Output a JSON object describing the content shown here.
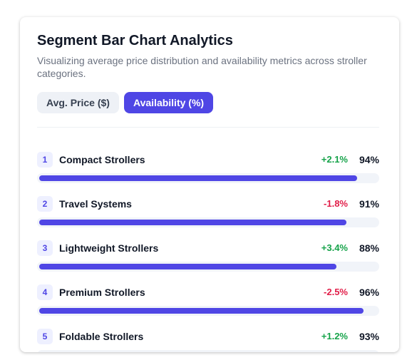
{
  "chart_data": {
    "type": "bar",
    "title": "Segment Bar Chart Analytics",
    "subtitle": "Visualizing average price distribution and availability metrics across stroller categories.",
    "tabs": [
      "Avg. Price ($)",
      "Availability (%)"
    ],
    "active_tab": 1,
    "ranks": [
      "1",
      "2",
      "3",
      "4",
      "5"
    ],
    "categories": [
      "Compact Strollers",
      "Travel Systems",
      "Lightweight Strollers",
      "Premium Strollers",
      "Foldable Strollers"
    ],
    "values": [
      94,
      91,
      88,
      96,
      93
    ],
    "value_labels": [
      "94%",
      "91%",
      "88%",
      "96%",
      "93%"
    ],
    "changes": [
      2.1,
      -1.8,
      3.4,
      -2.5,
      1.2
    ],
    "change_labels": [
      "+2.1%",
      "-1.8%",
      "+3.4%",
      "-2.5%",
      "+1.2%"
    ],
    "xlim": [
      0,
      100
    ],
    "color": "#4f46e5"
  }
}
